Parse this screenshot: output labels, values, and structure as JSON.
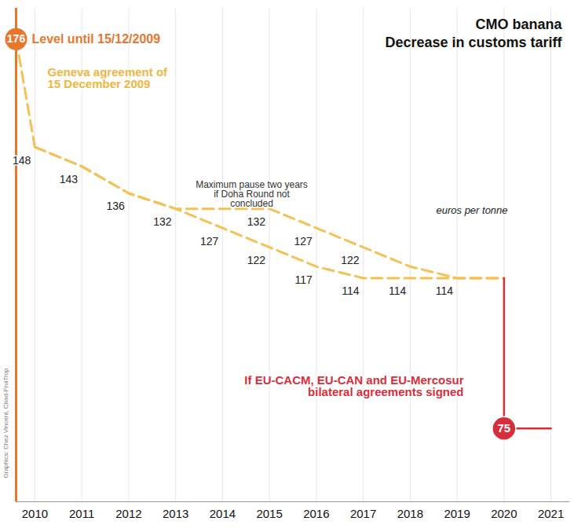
{
  "chart_data": {
    "type": "line",
    "title": "CMO banana",
    "subtitle": "Decrease in customs tariff",
    "ylabel": "euros per tonne",
    "credit": "Graphics: Chez Vincent, Cirad-FruiTrop",
    "start": {
      "value": 176,
      "label": "Level until 15/12/2009",
      "color": "#e8772e"
    },
    "series": [
      {
        "name": "Geneva agreement of 15 December 2009",
        "color": "#f4c159",
        "line_style": "dashed",
        "x": [
          2010,
          2011,
          2012,
          2013,
          2014,
          2015,
          2016,
          2017,
          2018,
          2019,
          2020
        ],
        "values": [
          148,
          143,
          136,
          132,
          127,
          122,
          117,
          114,
          114,
          114,
          114
        ],
        "value_labels": [
          "148",
          "143",
          "136",
          "132",
          "127",
          "122",
          "117",
          "114",
          "114",
          "114",
          null
        ]
      },
      {
        "name": "Maximum pause two years if Doha Round not concluded",
        "color": "#f4c159",
        "line_style": "dashed",
        "x": [
          2010,
          2011,
          2012,
          2013,
          2014,
          2015,
          2016,
          2017,
          2018,
          2019,
          2020
        ],
        "values": [
          148,
          143,
          136,
          132,
          132,
          132,
          127,
          122,
          117,
          114,
          114
        ],
        "value_labels": [
          null,
          null,
          null,
          null,
          null,
          "132",
          "127",
          "122",
          null,
          null,
          null
        ]
      },
      {
        "name": "If EU-CACM, EU-CAN and EU-Mercosur bilateral agreements signed",
        "color": "#d62f3c",
        "line_style": "solid",
        "marker": "circle",
        "x": [
          2020,
          2020,
          2021
        ],
        "values": [
          114,
          75,
          75
        ],
        "value_labels": [
          null,
          "75",
          null
        ]
      }
    ],
    "xlim": [
      2009.6,
      2021.4
    ],
    "xticks": [
      2010,
      2011,
      2012,
      2013,
      2014,
      2015,
      2016,
      2017,
      2018,
      2019,
      2020,
      2021
    ],
    "ylim": [
      56,
      184
    ],
    "yticks": [],
    "grid": true,
    "data_labels": true,
    "tick_labels": "x"
  }
}
